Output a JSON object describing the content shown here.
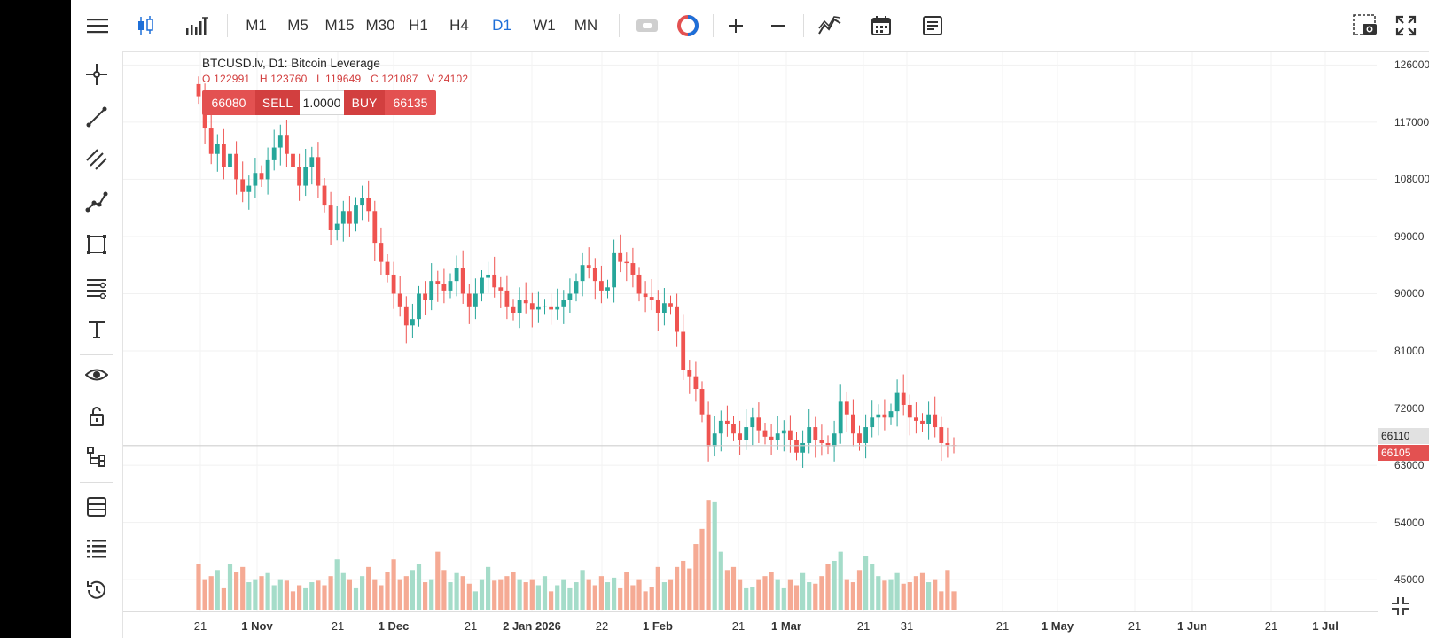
{
  "toolbar": {
    "timeframes": [
      "M1",
      "M5",
      "M15",
      "M30",
      "H1",
      "H4",
      "D1",
      "W1",
      "MN"
    ],
    "active_timeframe": "D1"
  },
  "legend": {
    "symbol": "BTCUSD.lv, D1: Bitcoin Leverage",
    "open": "O 122991",
    "high": "H 123760",
    "low": "L 119649",
    "close": "C 121087",
    "volume": "V 24102"
  },
  "trade": {
    "sell_price": "66080",
    "sell_label": "SELL",
    "lot": "1.0000",
    "buy_label": "BUY",
    "buy_price": "66135"
  },
  "price_axis": {
    "labels": [
      "126000",
      "117000",
      "108000",
      "99000",
      "90000",
      "81000",
      "72000",
      "63000",
      "54000",
      "45000"
    ],
    "current_tag": "66110",
    "bid_tag": "66105"
  },
  "time_axis": {
    "labels": [
      {
        "text": "21",
        "bold": false
      },
      {
        "text": "1 Nov",
        "bold": true
      },
      {
        "text": "21",
        "bold": false
      },
      {
        "text": "1 Dec",
        "bold": true
      },
      {
        "text": "21",
        "bold": false
      },
      {
        "text": "2 Jan 2026",
        "bold": true
      },
      {
        "text": "22",
        "bold": false
      },
      {
        "text": "1 Feb",
        "bold": true
      },
      {
        "text": "21",
        "bold": false
      },
      {
        "text": "1 Mar",
        "bold": true
      },
      {
        "text": "21",
        "bold": false
      },
      {
        "text": "31",
        "bold": false
      },
      {
        "text": "21",
        "bold": false
      },
      {
        "text": "1 May",
        "bold": true
      },
      {
        "text": "21",
        "bold": false
      },
      {
        "text": "1 Jun",
        "bold": true
      },
      {
        "text": "21",
        "bold": false
      },
      {
        "text": "1 Jul",
        "bold": true
      }
    ]
  },
  "colors": {
    "up": "#26a69a",
    "down": "#ef5350",
    "volume_up": "#a5dcc9",
    "volume_down": "#f5aa94",
    "active_timeframe": "#1e6fd8"
  },
  "chart_data": {
    "type": "candlestick",
    "ylim": [
      40000,
      128000
    ],
    "bid_line": 66105,
    "closes": [
      121087,
      116000,
      112000,
      113500,
      110000,
      112000,
      108000,
      106000,
      107000,
      109000,
      108000,
      111000,
      113000,
      115000,
      112000,
      110000,
      107000,
      110000,
      111500,
      107000,
      104000,
      100000,
      101000,
      103000,
      101000,
      104000,
      105000,
      103000,
      98000,
      95000,
      93000,
      90000,
      88000,
      85000,
      86000,
      90000,
      89000,
      92000,
      91500,
      90500,
      92000,
      94000,
      90000,
      88000,
      90000,
      92500,
      93000,
      91000,
      90500,
      88000,
      87000,
      89000,
      88500,
      87500,
      88000,
      88000,
      87500,
      88000,
      89000,
      90000,
      92000,
      94500,
      94000,
      92000,
      90500,
      91000,
      96500,
      95000,
      94800,
      93000,
      90000,
      89500,
      89000,
      87000,
      88500,
      88000,
      84000,
      78000,
      77000,
      75000,
      71000,
      66000,
      68000,
      70000,
      69500,
      68000,
      67000,
      69000,
      70500,
      68500,
      67500,
      67000,
      68000,
      68500,
      67000,
      65000,
      66500,
      69000,
      67000,
      66500,
      66000,
      68000,
      73000,
      71000,
      68000,
      66500,
      69000,
      70500,
      71000,
      70500,
      71500,
      74500,
      72500,
      70500,
      70000,
      69500,
      71000,
      69000,
      66500,
      66200,
      66100
    ],
    "volumes": [
      30,
      20,
      22,
      26,
      14,
      30,
      25,
      28,
      18,
      20,
      22,
      24,
      16,
      20,
      19,
      12,
      16,
      14,
      18,
      19,
      16,
      22,
      33,
      24,
      20,
      14,
      22,
      28,
      20,
      16,
      25,
      33,
      20,
      22,
      26,
      30,
      18,
      20,
      38,
      26,
      18,
      24,
      22,
      17,
      12,
      20,
      28,
      19,
      20,
      22,
      25,
      20,
      18,
      20,
      16,
      22,
      12,
      16,
      20,
      14,
      18,
      26,
      20,
      16,
      22,
      18,
      21,
      14,
      25,
      16,
      20,
      12,
      15,
      28,
      18,
      20,
      28,
      32,
      27,
      43,
      53,
      72,
      71,
      38,
      26,
      28,
      20,
      14,
      15,
      20,
      22,
      25,
      20,
      14,
      20,
      16,
      24,
      18,
      17,
      22,
      30,
      32,
      38,
      20,
      18,
      26,
      35,
      30,
      22,
      19,
      20,
      24,
      17,
      18,
      22,
      24,
      18,
      20,
      12,
      26,
      12
    ],
    "x_labels": [
      "21",
      "1 Nov",
      "21",
      "1 Dec",
      "21",
      "2 Jan 2026",
      "22",
      "1 Feb",
      "21",
      "1 Mar",
      "21",
      "31",
      "21",
      "1 May",
      "21",
      "1 Jun",
      "21",
      "1 Jul"
    ],
    "y_labels": [
      "126000",
      "117000",
      "108000",
      "99000",
      "90000",
      "81000",
      "72000",
      "63000",
      "54000",
      "45000"
    ]
  }
}
